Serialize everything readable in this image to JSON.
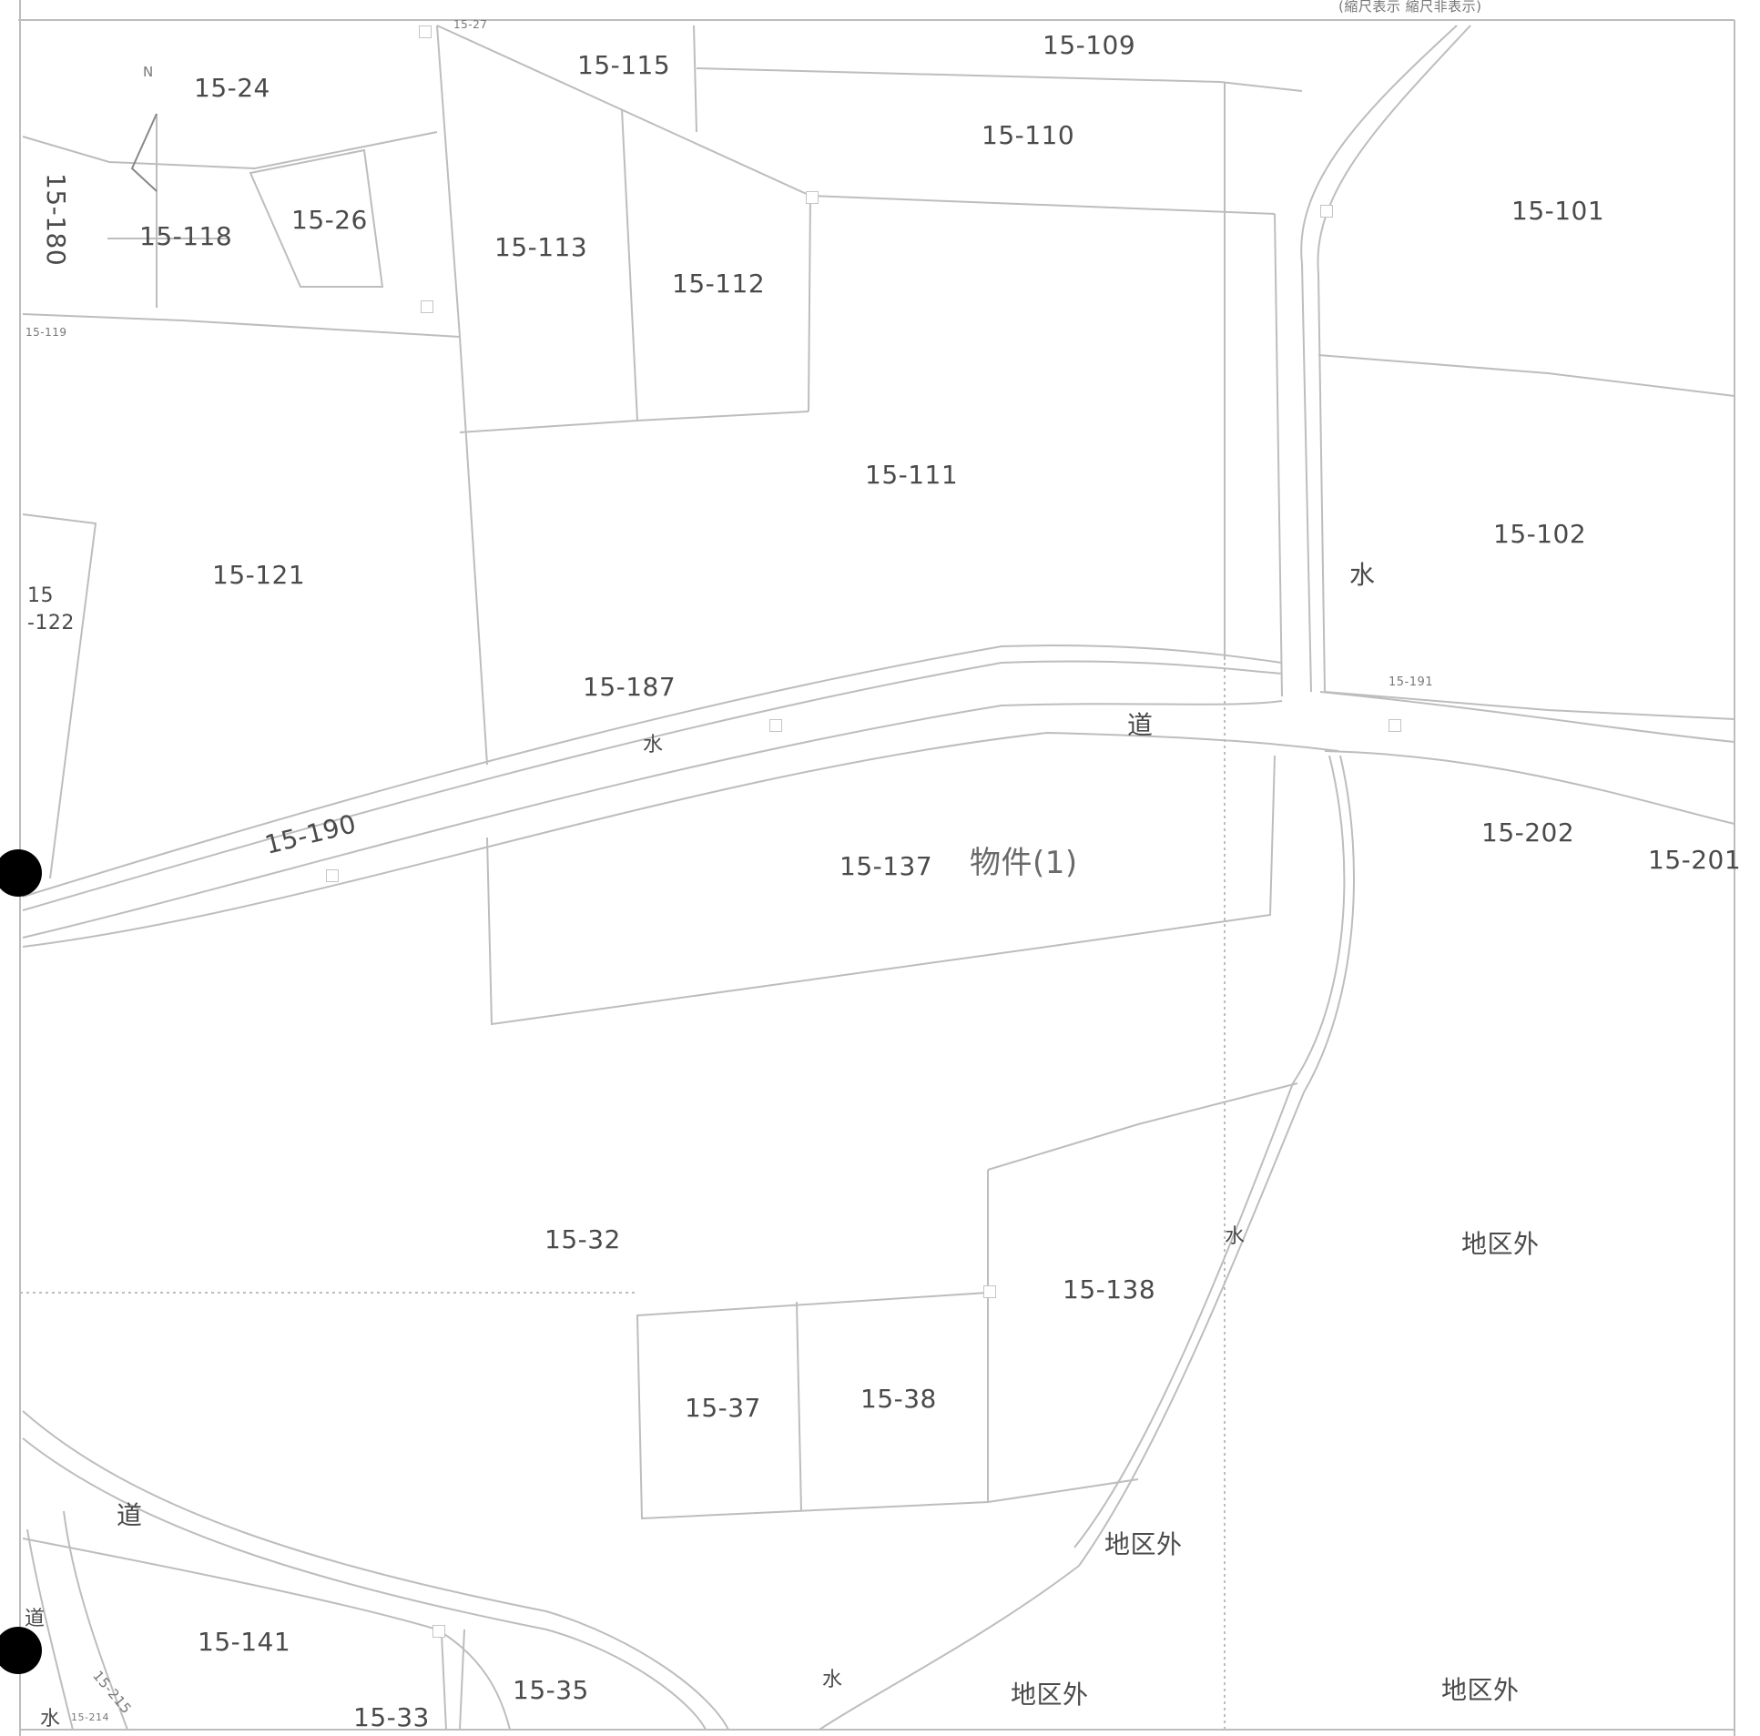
{
  "header_text": "(縮尺表示 縮尺非表示)",
  "compass": "N",
  "parcels": {
    "p24": "15-24",
    "p109": "15-109",
    "p115": "15-115",
    "p110": "15-110",
    "p101": "15-101",
    "p180": "15-180",
    "p118": "15-118",
    "p26": "15-26",
    "p113": "15-113",
    "p112": "15-112",
    "p111": "15-111",
    "p121": "15-121",
    "p122a": "15",
    "p122b": "-122",
    "p102": "15-102",
    "p187": "15-187",
    "p190": "15-190",
    "p137": "15-137",
    "p202": "15-202",
    "p201": "15-201",
    "p32": "15-32",
    "p138": "15-138",
    "p37": "15-37",
    "p38": "15-38",
    "p141": "15-141",
    "p35": "15-35",
    "p33": "15-33",
    "p215": "15-215",
    "p214": "15-214",
    "p119": "15-119",
    "p27": "15-27",
    "p191": "15-191"
  },
  "features": {
    "water1": "水",
    "water2": "水",
    "water3": "水",
    "water4": "水",
    "water5": "水",
    "road1": "道",
    "road2": "道",
    "road3": "道"
  },
  "outside": {
    "o1": "地区外",
    "o2": "地区外",
    "o3": "地区外",
    "o4": "地区外"
  },
  "property_label": "物件(1)"
}
